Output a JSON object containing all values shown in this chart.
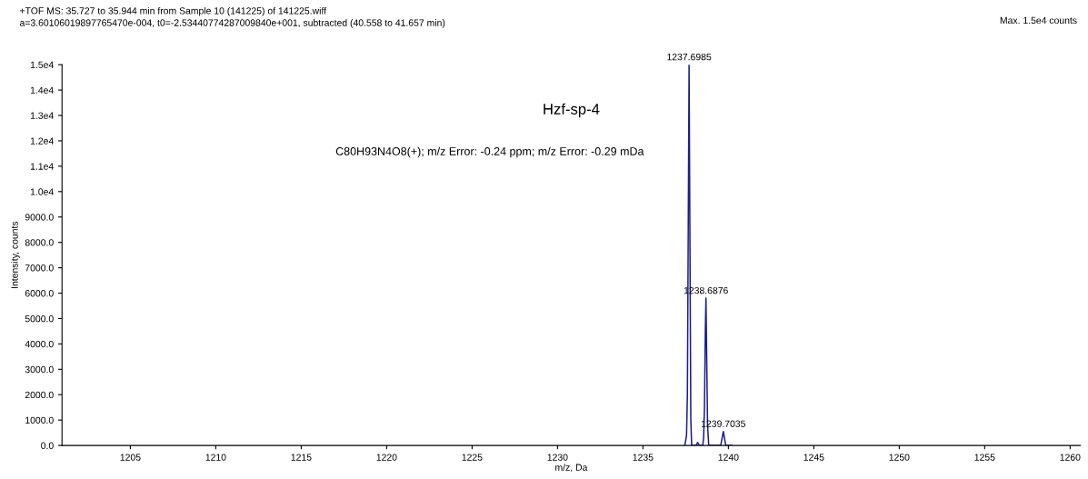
{
  "chart_data": {
    "type": "line",
    "title": "+TOF MS: 35.727 to 35.944 min from Sample 10 (141225) of 141225.wiff",
    "subtitle": "a=3.60106019897765470e-004, t0=-2.53440774287009840e+001, subtracted (40.558 to 41.657 min)",
    "xlabel": "m/z, Da",
    "ylabel": "Intensity, counts",
    "x": [
      1237.45,
      1237.5,
      1237.55,
      1237.6,
      1237.65,
      1237.6985,
      1237.75,
      1237.8,
      1237.85,
      1238.1,
      1238.2,
      1238.3,
      1238.5,
      1238.55,
      1238.6,
      1238.65,
      1238.6876,
      1238.73,
      1238.78,
      1238.85,
      1239.55,
      1239.62,
      1239.7035,
      1239.78,
      1239.85,
      1240.2
    ],
    "series": [
      {
        "color": "#1c1c8e",
        "values": [
          0,
          200,
          400,
          2000,
          8500,
          15000,
          8000,
          1000,
          0,
          0,
          120,
          0,
          0,
          300,
          1500,
          4500,
          5800,
          3500,
          800,
          0,
          0,
          250,
          550,
          250,
          0,
          0
        ]
      }
    ],
    "xlim": [
      1201,
      1260.6
    ],
    "xticks": [
      1205,
      1210,
      1215,
      1220,
      1225,
      1230,
      1235,
      1240,
      1245,
      1250,
      1255,
      1260
    ],
    "ylim": [
      0,
      15000
    ],
    "yticks": [
      {
        "value": 0,
        "label": "0.0"
      },
      {
        "value": 1000,
        "label": "1000.0"
      },
      {
        "value": 2000,
        "label": "2000.0"
      },
      {
        "value": 3000,
        "label": "3000.0"
      },
      {
        "value": 4000,
        "label": "4000.0"
      },
      {
        "value": 5000,
        "label": "5000.0"
      },
      {
        "value": 6000,
        "label": "6000.0"
      },
      {
        "value": 7000,
        "label": "7000.0"
      },
      {
        "value": 8000,
        "label": "8000.0"
      },
      {
        "value": 9000,
        "label": "9000.0"
      },
      {
        "value": 10000,
        "label": "1.0e4"
      },
      {
        "value": 11000,
        "label": "1.1e4"
      },
      {
        "value": 12000,
        "label": "1.2e4"
      },
      {
        "value": 13000,
        "label": "1.3e4"
      },
      {
        "value": 14000,
        "label": "1.4e4"
      },
      {
        "value": 15000,
        "label": "1.5e4"
      }
    ],
    "grid": false,
    "legend": false,
    "annotations": [
      {
        "text": "1237.6985",
        "x": 1237.6985,
        "y": 15000
      },
      {
        "text": "1238.6876",
        "x": 1238.6876,
        "y": 5800
      },
      {
        "text": "1239.7035",
        "x": 1239.7035,
        "y": 550
      },
      "Max. 1.5e4 counts",
      "Hzf-sp-4",
      "C80H93N4O8(+); m/z Error: -0.24 ppm; m/z Error: -0.29 mDa"
    ]
  }
}
